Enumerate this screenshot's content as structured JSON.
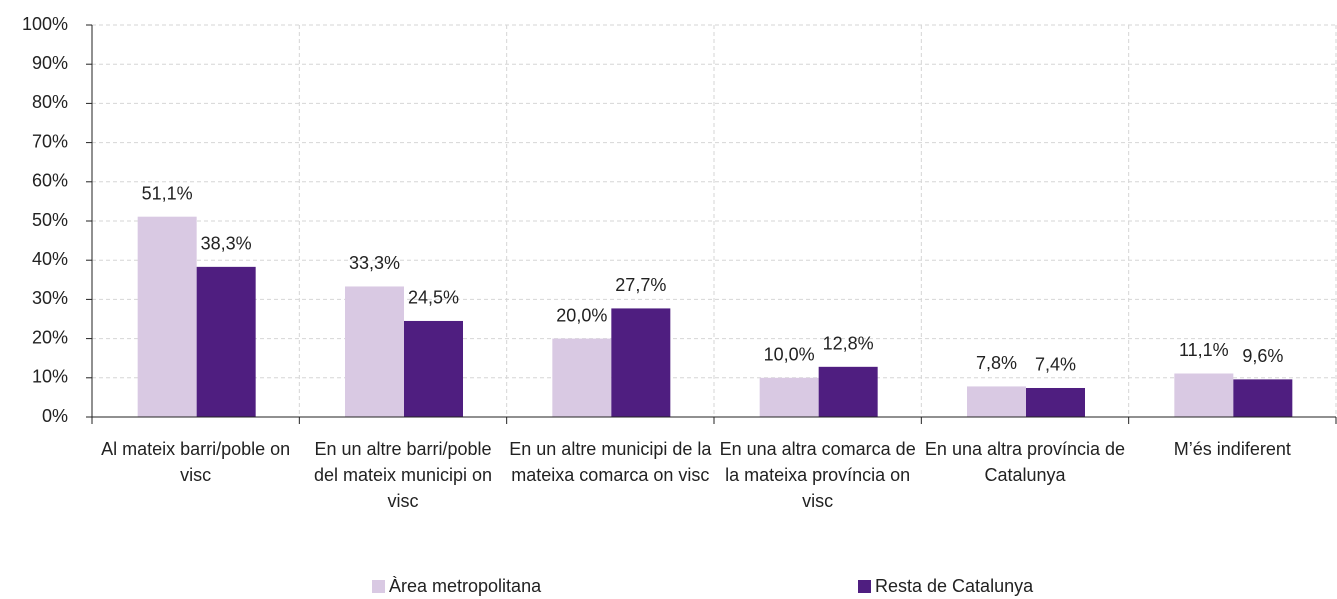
{
  "chart_data": {
    "type": "bar",
    "categories": [
      "Al mateix barri/poble on visc",
      "En un altre barri/poble del mateix municipi on visc",
      "En un altre municipi de la mateixa comarca on visc",
      "En una altra comarca de la mateixa província on visc",
      "En una altra província de Catalunya",
      "M’és indiferent"
    ],
    "series": [
      {
        "name": "Àrea metropolitana",
        "color": "#d9c9e3",
        "values": [
          51.1,
          33.3,
          20.0,
          10.0,
          7.8,
          11.1
        ],
        "value_labels": [
          "51,1%",
          "33,3%",
          "20,0%",
          "10,0%",
          "7,8%",
          "11,1%"
        ]
      },
      {
        "name": "Resta de Catalunya",
        "color": "#4f1e80",
        "values": [
          38.3,
          24.5,
          27.7,
          12.8,
          7.4,
          9.6
        ],
        "value_labels": [
          "38,3%",
          "24,5%",
          "27,7%",
          "12,8%",
          "7,4%",
          "9,6%"
        ]
      }
    ],
    "ylim": [
      0,
      100
    ],
    "yticks": [
      {
        "value": 0,
        "label": "0%"
      },
      {
        "value": 10,
        "label": "10%"
      },
      {
        "value": 20,
        "label": "20%"
      },
      {
        "value": 30,
        "label": "30%"
      },
      {
        "value": 40,
        "label": "40%"
      },
      {
        "value": 50,
        "label": "50%"
      },
      {
        "value": 60,
        "label": "60%"
      },
      {
        "value": 70,
        "label": "70%"
      },
      {
        "value": 80,
        "label": "80%"
      },
      {
        "value": 90,
        "label": "90%"
      },
      {
        "value": 100,
        "label": "100%"
      }
    ],
    "grid": true
  }
}
